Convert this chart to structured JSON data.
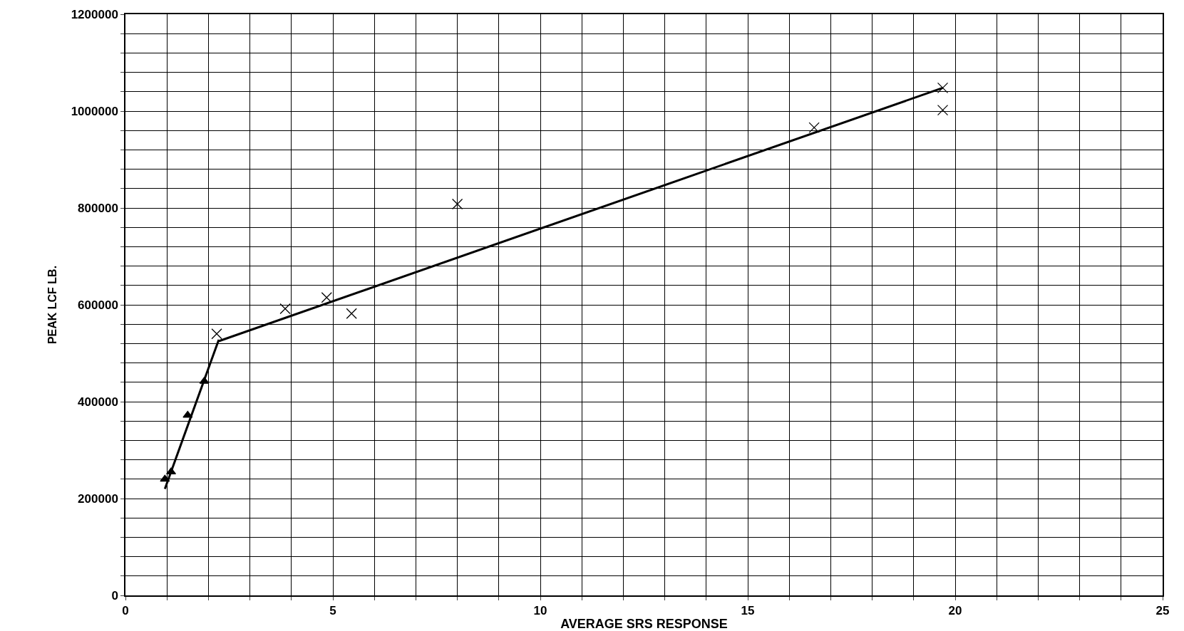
{
  "chart_data": {
    "type": "scatter",
    "xlabel": "AVERAGE SRS RESPONSE",
    "ylabel": "PEAK LCF LB.",
    "xlim": [
      0,
      25
    ],
    "ylim": [
      0,
      1200000
    ],
    "xticks": [
      0,
      {
        "value": 1,
        "label": null
      },
      {
        "value": 2,
        "label": null
      },
      {
        "value": 3,
        "label": null
      },
      {
        "value": 4,
        "label": null
      },
      5,
      {
        "value": 6,
        "label": null
      },
      {
        "value": 7,
        "label": null
      },
      {
        "value": 8,
        "label": null
      },
      {
        "value": 9,
        "label": null
      },
      10,
      {
        "value": 11,
        "label": null
      },
      {
        "value": 12,
        "label": null
      },
      {
        "value": 13,
        "label": null
      },
      {
        "value": 14,
        "label": null
      },
      15,
      {
        "value": 16,
        "label": null
      },
      {
        "value": 17,
        "label": null
      },
      {
        "value": 18,
        "label": null
      },
      {
        "value": 19,
        "label": null
      },
      20,
      {
        "value": 21,
        "label": null
      },
      {
        "value": 22,
        "label": null
      },
      {
        "value": 23,
        "label": null
      },
      {
        "value": 24,
        "label": null
      },
      25
    ],
    "yticks": [
      0,
      {
        "value": 40000,
        "label": null
      },
      {
        "value": 80000,
        "label": null
      },
      {
        "value": 120000,
        "label": null
      },
      {
        "value": 160000,
        "label": null
      },
      200000,
      {
        "value": 240000,
        "label": null
      },
      {
        "value": 280000,
        "label": null
      },
      {
        "value": 320000,
        "label": null
      },
      {
        "value": 360000,
        "label": null
      },
      400000,
      {
        "value": 440000,
        "label": null
      },
      {
        "value": 480000,
        "label": null
      },
      {
        "value": 520000,
        "label": null
      },
      {
        "value": 560000,
        "label": null
      },
      600000,
      {
        "value": 640000,
        "label": null
      },
      {
        "value": 680000,
        "label": null
      },
      {
        "value": 720000,
        "label": null
      },
      {
        "value": 760000,
        "label": null
      },
      800000,
      {
        "value": 840000,
        "label": null
      },
      {
        "value": 880000,
        "label": null
      },
      {
        "value": 920000,
        "label": null
      },
      {
        "value": 960000,
        "label": null
      },
      1000000,
      {
        "value": 1040000,
        "label": null
      },
      {
        "value": 1080000,
        "label": null
      },
      {
        "value": 1120000,
        "label": null
      },
      {
        "value": 1160000,
        "label": null
      },
      1200000
    ],
    "grid": true,
    "series": [
      {
        "marker": "triangle",
        "color": "#000000",
        "x": [
          0.95,
          1.1,
          1.5,
          1.9
        ],
        "values": [
          240000,
          255000,
          372000,
          442000
        ]
      },
      {
        "marker": "cross",
        "color": "#000000",
        "x": [
          2.2,
          3.85,
          4.85,
          5.45,
          8.0,
          16.6,
          19.7,
          19.7
        ],
        "values": [
          540000,
          592000,
          615000,
          582000,
          808000,
          966000,
          1048000,
          1002000
        ]
      },
      {
        "type": "line",
        "marker": "none",
        "line_style": "solid",
        "color": "#000000",
        "x": [
          0.95,
          2.25
        ],
        "values": [
          220000,
          528000
        ]
      },
      {
        "type": "line",
        "marker": "none",
        "line_style": "solid",
        "color": "#000000",
        "x": [
          2.25,
          19.7
        ],
        "values": [
          525000,
          1048000
        ]
      }
    ]
  }
}
